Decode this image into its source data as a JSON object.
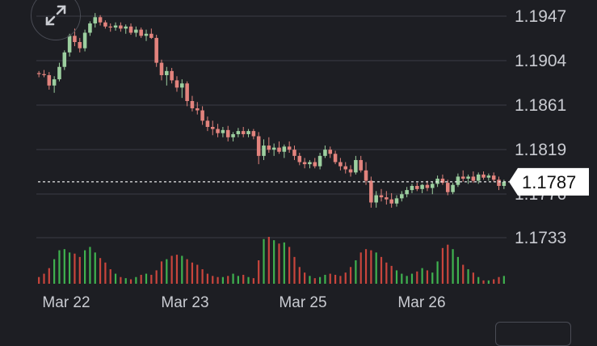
{
  "chart_data": {
    "type": "candlestick",
    "x_ticks": [
      "Mar 22",
      "Mar 23",
      "Mar 25",
      "Mar 26"
    ],
    "y_ticks": [
      "1.1947",
      "1.1904",
      "1.1861",
      "1.1819",
      "1.1776",
      "1.1733"
    ],
    "ylim": [
      1.1718,
      1.196
    ],
    "current_price": "1.1787",
    "current_price_value": 1.1787,
    "grid": true,
    "up_color": "#9ccf9f",
    "down_color": "#e2837d",
    "volume_up_color": "#3fb24f",
    "volume_down_color": "#c9453c",
    "candles": [
      [
        1.1892,
        1.1894,
        1.1888,
        1.1891
      ],
      [
        1.1891,
        1.1895,
        1.1888,
        1.189
      ],
      [
        1.189,
        1.1893,
        1.1876,
        1.188
      ],
      [
        1.188,
        1.1889,
        1.1873,
        1.1886
      ],
      [
        1.1886,
        1.1902,
        1.1884,
        1.1898
      ],
      [
        1.1898,
        1.1914,
        1.1895,
        1.1912
      ],
      [
        1.1912,
        1.193,
        1.1908,
        1.1928
      ],
      [
        1.1928,
        1.1935,
        1.1918,
        1.1922
      ],
      [
        1.1922,
        1.1926,
        1.1912,
        1.1916
      ],
      [
        1.1916,
        1.1934,
        1.1913,
        1.1931
      ],
      [
        1.1931,
        1.1942,
        1.1928,
        1.194
      ],
      [
        1.194,
        1.195,
        1.1936,
        1.1946
      ],
      [
        1.1946,
        1.1948,
        1.1938,
        1.1941
      ],
      [
        1.1941,
        1.1943,
        1.1935,
        1.1937
      ],
      [
        1.1937,
        1.194,
        1.1932,
        1.1936
      ],
      [
        1.1936,
        1.1941,
        1.1933,
        1.1938
      ],
      [
        1.1938,
        1.1941,
        1.1932,
        1.1935
      ],
      [
        1.1935,
        1.1939,
        1.193,
        1.1937
      ],
      [
        1.1937,
        1.194,
        1.1929,
        1.1931
      ],
      [
        1.1931,
        1.1937,
        1.1927,
        1.1934
      ],
      [
        1.1934,
        1.1936,
        1.1926,
        1.1928
      ],
      [
        1.1928,
        1.1934,
        1.1923,
        1.193
      ],
      [
        1.193,
        1.1935,
        1.1925,
        1.1926
      ],
      [
        1.1926,
        1.1929,
        1.1898,
        1.1902
      ],
      [
        1.1902,
        1.1905,
        1.1885,
        1.189
      ],
      [
        1.189,
        1.1898,
        1.188,
        1.1894
      ],
      [
        1.1894,
        1.1897,
        1.1882,
        1.1885
      ],
      [
        1.1885,
        1.1889,
        1.1874,
        1.1878
      ],
      [
        1.1878,
        1.1886,
        1.1868,
        1.1882
      ],
      [
        1.1882,
        1.1884,
        1.186,
        1.1865
      ],
      [
        1.1865,
        1.187,
        1.1855,
        1.1858
      ],
      [
        1.1858,
        1.1864,
        1.1852,
        1.1856
      ],
      [
        1.1856,
        1.186,
        1.1842,
        1.1846
      ],
      [
        1.1846,
        1.185,
        1.1836,
        1.184
      ],
      [
        1.184,
        1.1846,
        1.1832,
        1.1838
      ],
      [
        1.1838,
        1.1843,
        1.183,
        1.1834
      ],
      [
        1.1834,
        1.184,
        1.183,
        1.1837
      ],
      [
        1.1837,
        1.1841,
        1.1826,
        1.183
      ],
      [
        1.183,
        1.1835,
        1.1826,
        1.1833
      ],
      [
        1.1833,
        1.1839,
        1.183,
        1.1836
      ],
      [
        1.1836,
        1.184,
        1.183,
        1.1833
      ],
      [
        1.1833,
        1.1838,
        1.183,
        1.1836
      ],
      [
        1.1836,
        1.1838,
        1.1828,
        1.1831
      ],
      [
        1.1831,
        1.1835,
        1.1804,
        1.1812
      ],
      [
        1.1812,
        1.1828,
        1.1808,
        1.1822
      ],
      [
        1.1822,
        1.183,
        1.1815,
        1.1818
      ],
      [
        1.1818,
        1.1824,
        1.1812,
        1.182
      ],
      [
        1.182,
        1.1826,
        1.1814,
        1.1816
      ],
      [
        1.1816,
        1.1823,
        1.181,
        1.1821
      ],
      [
        1.1821,
        1.1826,
        1.1815,
        1.1818
      ],
      [
        1.1818,
        1.1822,
        1.1808,
        1.1812
      ],
      [
        1.1812,
        1.1815,
        1.1803,
        1.1806
      ],
      [
        1.1806,
        1.181,
        1.18,
        1.1804
      ],
      [
        1.1804,
        1.1808,
        1.18,
        1.1806
      ],
      [
        1.1806,
        1.181,
        1.18,
        1.1802
      ],
      [
        1.1802,
        1.1815,
        1.1799,
        1.1812
      ],
      [
        1.1812,
        1.1822,
        1.181,
        1.1818
      ],
      [
        1.1818,
        1.1821,
        1.181,
        1.1814
      ],
      [
        1.1814,
        1.1817,
        1.1804,
        1.1806
      ],
      [
        1.1806,
        1.181,
        1.1798,
        1.1802
      ],
      [
        1.1802,
        1.1806,
        1.1795,
        1.1799
      ],
      [
        1.1799,
        1.1803,
        1.1792,
        1.1796
      ],
      [
        1.1796,
        1.1812,
        1.1794,
        1.1808
      ],
      [
        1.1808,
        1.1812,
        1.1796,
        1.1798
      ],
      [
        1.1798,
        1.1806,
        1.1784,
        1.1788
      ],
      [
        1.1788,
        1.1792,
        1.1762,
        1.1767
      ],
      [
        1.1767,
        1.1778,
        1.1762,
        1.1774
      ],
      [
        1.1774,
        1.178,
        1.1768,
        1.1772
      ],
      [
        1.1772,
        1.1778,
        1.1765,
        1.177
      ],
      [
        1.177,
        1.1776,
        1.1762,
        1.1766
      ],
      [
        1.1766,
        1.1774,
        1.1763,
        1.1771
      ],
      [
        1.1771,
        1.1778,
        1.1768,
        1.1775
      ],
      [
        1.1775,
        1.1782,
        1.1772,
        1.1779
      ],
      [
        1.1779,
        1.1785,
        1.1776,
        1.1783
      ],
      [
        1.1783,
        1.1786,
        1.1778,
        1.178
      ],
      [
        1.178,
        1.1785,
        1.1776,
        1.1784
      ],
      [
        1.1784,
        1.1788,
        1.1778,
        1.1781
      ],
      [
        1.1781,
        1.1787,
        1.1775,
        1.1785
      ],
      [
        1.1785,
        1.1793,
        1.1782,
        1.179
      ],
      [
        1.179,
        1.1794,
        1.1784,
        1.1786
      ],
      [
        1.1786,
        1.1789,
        1.1774,
        1.1777
      ],
      [
        1.1777,
        1.1786,
        1.1775,
        1.1784
      ],
      [
        1.1784,
        1.1795,
        1.1782,
        1.1792
      ],
      [
        1.1792,
        1.1798,
        1.1787,
        1.179
      ],
      [
        1.179,
        1.1794,
        1.1785,
        1.1792
      ],
      [
        1.1792,
        1.1797,
        1.1786,
        1.1788
      ],
      [
        1.1788,
        1.1796,
        1.1785,
        1.1794
      ],
      [
        1.1794,
        1.1797,
        1.1789,
        1.1791
      ],
      [
        1.1791,
        1.1795,
        1.1788,
        1.1793
      ],
      [
        1.1793,
        1.1796,
        1.1787,
        1.1789
      ],
      [
        1.1789,
        1.1792,
        1.1779,
        1.1783
      ],
      [
        1.1783,
        1.1789,
        1.178,
        1.1787
      ]
    ],
    "volumes": [
      6,
      9,
      14,
      22,
      30,
      31,
      28,
      27,
      24,
      30,
      33,
      28,
      23,
      19,
      13,
      9,
      6,
      5,
      4,
      6,
      8,
      9,
      8,
      12,
      20,
      22,
      25,
      26,
      25,
      22,
      19,
      17,
      13,
      9,
      7,
      6,
      6,
      7,
      9,
      7,
      8,
      6,
      5,
      21,
      40,
      42,
      39,
      36,
      37,
      33,
      24,
      15,
      10,
      7,
      5,
      6,
      8,
      9,
      8,
      7,
      10,
      15,
      21,
      28,
      31,
      30,
      28,
      24,
      19,
      16,
      12,
      9,
      7,
      9,
      11,
      14,
      12,
      10,
      20,
      32,
      35,
      31,
      24,
      17,
      13,
      10,
      6,
      3,
      3,
      4,
      6,
      7
    ]
  }
}
